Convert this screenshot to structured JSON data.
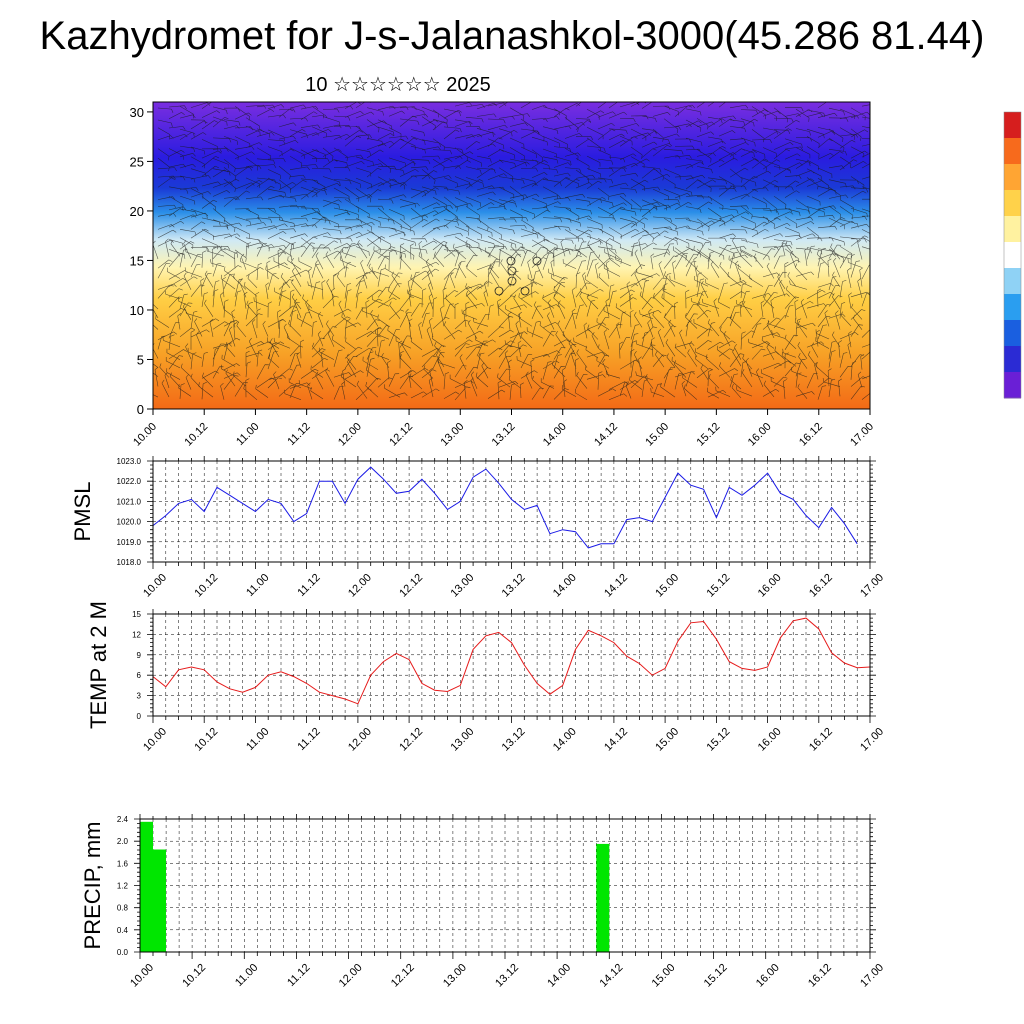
{
  "title": "Kazhydromet for J-s-Jalanashkol-3000(45.286 81.44)",
  "subtitle": "10 ☆☆☆☆☆☆ 2025",
  "colorbar": {
    "colors": [
      "#6a1fd6",
      "#2b2bd4",
      "#1a5fe0",
      "#2a9ef0",
      "#8fd2f5",
      "#ffffff",
      "#fff2a0",
      "#ffd24a",
      "#ffa533",
      "#f76a1c",
      "#d61e1e"
    ]
  },
  "time_ticks": [
    "10.00",
    "10.12",
    "11.00",
    "11.12",
    "12.00",
    "12.12",
    "13.00",
    "13.12",
    "14.00",
    "14.12",
    "15.00",
    "15.12",
    "16.00",
    "16.12",
    "17.00"
  ],
  "chart_data": [
    {
      "type": "heatmap",
      "name": "vertical-section",
      "x_ticks": [
        "10.00",
        "10.12",
        "11.00",
        "11.12",
        "12.00",
        "12.12",
        "13.00",
        "13.12",
        "14.00",
        "14.12",
        "15.00",
        "15.12",
        "16.00",
        "16.12",
        "17.00"
      ],
      "y_ticks": [
        0,
        5,
        10,
        15,
        20,
        25,
        30
      ],
      "ylim": [
        0,
        31
      ]
    },
    {
      "type": "line",
      "ylabel": "PMSL",
      "ylim": [
        1018.0,
        1023.0
      ],
      "y_ticks": [
        "1018.0",
        "1019.0",
        "1020.0",
        "1021.0",
        "1022.0",
        "1023.0"
      ],
      "color": "#1a1ae6",
      "x": [
        0,
        3,
        6,
        9,
        12,
        15,
        18,
        21,
        24,
        27,
        30,
        33,
        36,
        39,
        42,
        45,
        48,
        51,
        54,
        57,
        60,
        63,
        66,
        69,
        72,
        75,
        78,
        81,
        84,
        87,
        90,
        93,
        96,
        99,
        102,
        105,
        108,
        111,
        114,
        117,
        120,
        123,
        126,
        129,
        132,
        135,
        138,
        141,
        144,
        147,
        150,
        153,
        156,
        159,
        162,
        165
      ],
      "values": [
        1019.8,
        1020.3,
        1020.9,
        1021.1,
        1020.5,
        1021.7,
        1021.3,
        1020.9,
        1020.5,
        1021.1,
        1020.9,
        1020.0,
        1020.4,
        1022.0,
        1022.0,
        1020.9,
        1022.1,
        1022.7,
        1022.1,
        1021.4,
        1021.5,
        1022.1,
        1021.4,
        1020.6,
        1021.0,
        1022.2,
        1022.6,
        1021.9,
        1021.1,
        1020.6,
        1020.8,
        1019.4,
        1019.6,
        1019.5,
        1018.7,
        1018.9,
        1018.9,
        1020.1,
        1020.2,
        1020.0,
        1021.2,
        1022.4,
        1021.8,
        1021.6,
        1020.2,
        1021.7,
        1021.3,
        1021.8,
        1022.4,
        1021.4,
        1021.1,
        1020.3,
        1019.7,
        1020.7,
        1019.9,
        1018.9
      ]
    },
    {
      "type": "line",
      "ylabel": "TEMP at 2 M",
      "ylim": [
        0,
        15
      ],
      "y_ticks": [
        "0",
        "3",
        "6",
        "9",
        "12",
        "15"
      ],
      "color": "#e61a1a",
      "x": [
        0,
        3,
        6,
        9,
        12,
        15,
        18,
        21,
        24,
        27,
        30,
        33,
        36,
        39,
        42,
        45,
        48,
        51,
        54,
        57,
        60,
        63,
        66,
        69,
        72,
        75,
        78,
        81,
        84,
        87,
        90,
        93,
        96,
        99,
        102,
        105,
        108,
        111,
        114,
        117,
        120,
        123,
        126,
        129,
        132,
        135,
        138,
        141,
        144,
        147,
        150,
        153,
        156,
        159,
        162,
        165,
        168
      ],
      "values": [
        5.8,
        4.3,
        6.8,
        7.2,
        6.8,
        5.0,
        4.0,
        3.5,
        4.2,
        6.0,
        6.5,
        5.8,
        4.8,
        3.5,
        3.0,
        2.5,
        1.8,
        6.0,
        8.0,
        9.2,
        8.3,
        4.8,
        3.8,
        3.6,
        4.5,
        9.8,
        11.8,
        12.3,
        10.8,
        7.5,
        4.8,
        3.2,
        4.5,
        9.8,
        12.6,
        11.8,
        10.8,
        8.8,
        7.7,
        6.0,
        7.0,
        11.0,
        13.7,
        13.9,
        11.3,
        8.0,
        7.0,
        6.7,
        7.2,
        11.5,
        14.0,
        14.4,
        12.8,
        9.3,
        7.8,
        7.1,
        7.2
      ]
    },
    {
      "type": "bar",
      "ylabel": "PRECIP, mm",
      "ylim": [
        0,
        2.4
      ],
      "y_ticks": [
        "0.0",
        "0.4",
        "0.8",
        "1.2",
        "1.6",
        "2.0",
        "2.4"
      ],
      "color": "#00e600",
      "bars": [
        {
          "start_h": 0,
          "end_h": 3,
          "value": 2.35
        },
        {
          "start_h": 3,
          "end_h": 6,
          "value": 1.85
        },
        {
          "start_h": 105,
          "end_h": 108,
          "value": 1.95
        }
      ]
    }
  ]
}
